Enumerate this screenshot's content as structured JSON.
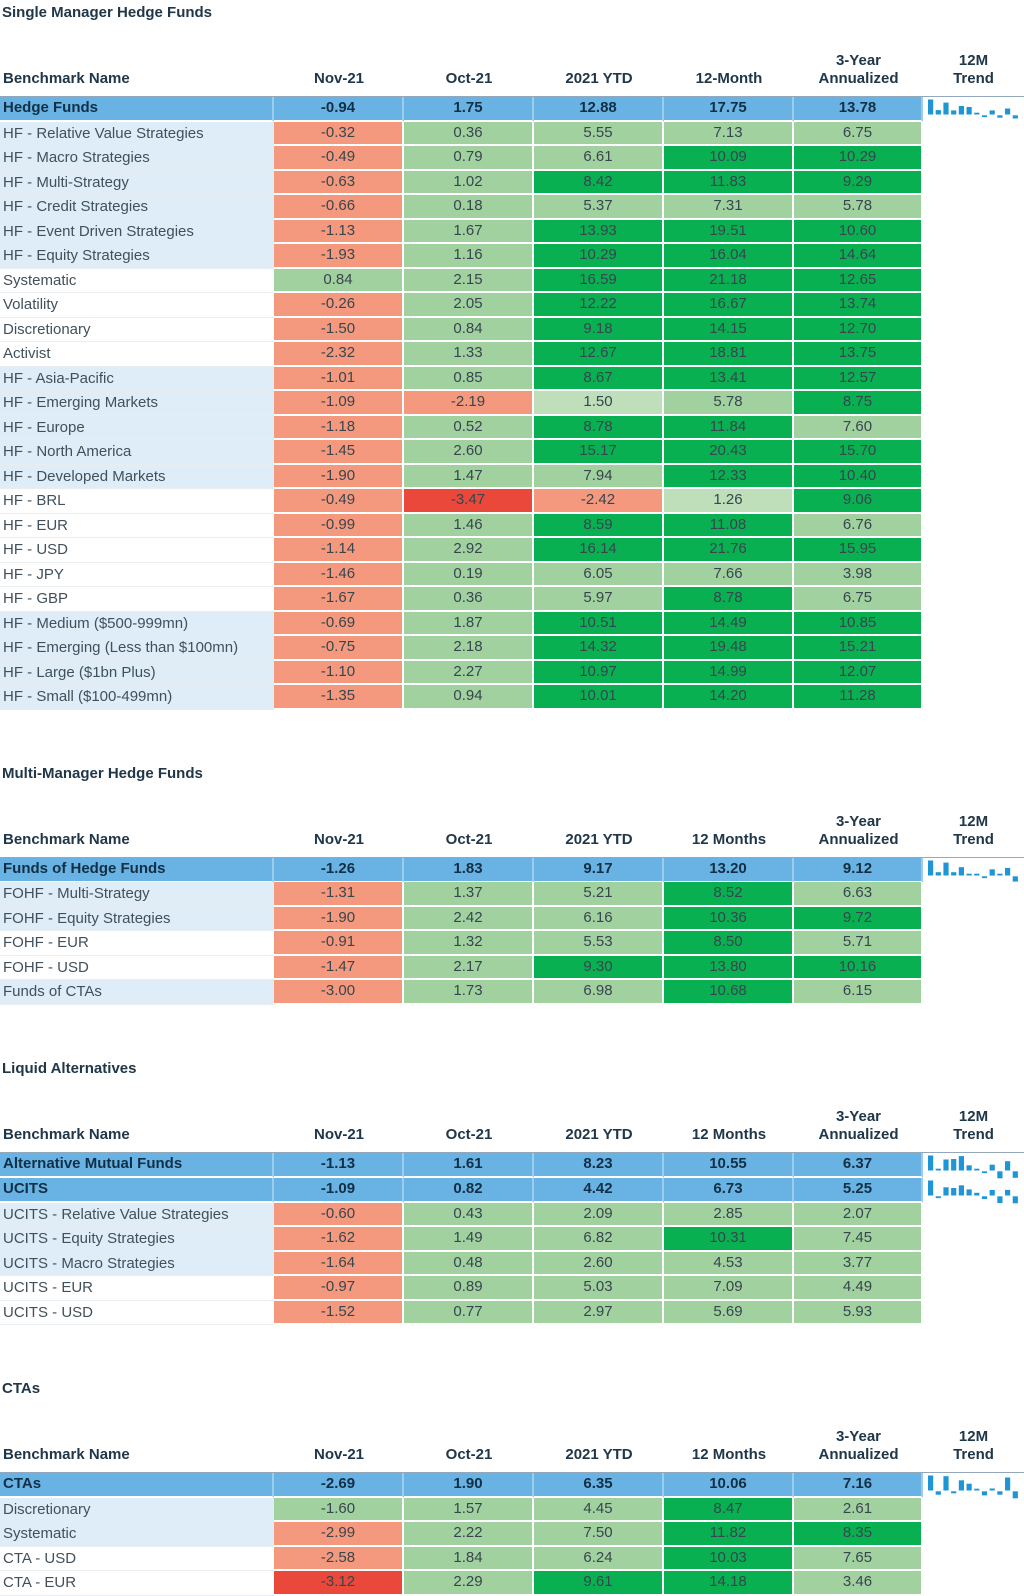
{
  "palette": {
    "parent_row_blue": "#68b3e3",
    "name_stripe_blue": "#deedf8",
    "cell_salmon": "#f5997e",
    "cell_red": "#e9483b",
    "cell_green_pale": "#bedfba",
    "cell_green_light": "#a2d1a0",
    "cell_green_dark": "#09b051",
    "sparkline_blue": "#1e96d6",
    "title_text": "#20374a",
    "number_text": "#37454e"
  },
  "chart_data": {
    "type": "table",
    "sections": [
      {
        "title": "Single Manager Hedge Funds",
        "columns": [
          "Benchmark Name",
          "Nov-21",
          "Oct-21",
          "2021 YTD",
          "12-Month",
          "3-Year\nAnnualized",
          "12M\nTrend"
        ],
        "parents": [
          {
            "name": "Hedge Funds",
            "values": [
              "-0.94",
              "1.75",
              "12.88",
              "17.75",
              "13.78"
            ],
            "trend": [
              4.4,
              1.3,
              3.5,
              1.2,
              2.5,
              2.2,
              0.5,
              -0.5,
              1.2,
              -0.7,
              1.75,
              -0.94
            ]
          }
        ],
        "rows": [
          {
            "name": "HF - Relative Value Strategies",
            "stripe": "blue",
            "values": [
              "-0.32",
              "0.36",
              "5.55",
              "7.13",
              "6.75"
            ],
            "colors": [
              "r1",
              "g1",
              "g1",
              "g1",
              "g1"
            ]
          },
          {
            "name": "HF - Macro Strategies",
            "stripe": "blue",
            "values": [
              "-0.49",
              "0.79",
              "6.61",
              "10.09",
              "10.29"
            ],
            "colors": [
              "r1",
              "g1",
              "g1",
              "g2",
              "g2"
            ]
          },
          {
            "name": "HF - Multi-Strategy",
            "stripe": "blue",
            "values": [
              "-0.63",
              "1.02",
              "8.42",
              "11.83",
              "9.29"
            ],
            "colors": [
              "r1",
              "g1",
              "g2",
              "g2",
              "g2"
            ]
          },
          {
            "name": "HF - Credit Strategies",
            "stripe": "blue",
            "values": [
              "-0.66",
              "0.18",
              "5.37",
              "7.31",
              "5.78"
            ],
            "colors": [
              "r1",
              "g1",
              "g1",
              "g1",
              "g1"
            ]
          },
          {
            "name": "HF - Event Driven Strategies",
            "stripe": "blue",
            "values": [
              "-1.13",
              "1.67",
              "13.93",
              "19.51",
              "10.60"
            ],
            "colors": [
              "r1",
              "g1",
              "g2",
              "g2",
              "g2"
            ]
          },
          {
            "name": "HF - Equity Strategies",
            "stripe": "blue",
            "values": [
              "-1.93",
              "1.16",
              "10.29",
              "16.04",
              "14.64"
            ],
            "colors": [
              "r1",
              "g1",
              "g2",
              "g2",
              "g2"
            ]
          },
          {
            "name": "Systematic",
            "stripe": "white",
            "values": [
              "0.84",
              "2.15",
              "16.59",
              "21.18",
              "12.65"
            ],
            "colors": [
              "g1",
              "g1",
              "g2",
              "g2",
              "g2"
            ]
          },
          {
            "name": "Volatility",
            "stripe": "white",
            "values": [
              "-0.26",
              "2.05",
              "12.22",
              "16.67",
              "13.74"
            ],
            "colors": [
              "r1",
              "g1",
              "g2",
              "g2",
              "g2"
            ]
          },
          {
            "name": "Discretionary",
            "stripe": "white",
            "values": [
              "-1.50",
              "0.84",
              "9.18",
              "14.15",
              "12.70"
            ],
            "colors": [
              "r1",
              "g1",
              "g2",
              "g2",
              "g2"
            ]
          },
          {
            "name": "Activist",
            "stripe": "white",
            "values": [
              "-2.32",
              "1.33",
              "12.67",
              "18.81",
              "13.75"
            ],
            "colors": [
              "r1",
              "g1",
              "g2",
              "g2",
              "g2"
            ]
          },
          {
            "name": "HF - Asia-Pacific",
            "stripe": "blue",
            "values": [
              "-1.01",
              "0.85",
              "8.67",
              "13.41",
              "12.57"
            ],
            "colors": [
              "r1",
              "g1",
              "g2",
              "g2",
              "g2"
            ]
          },
          {
            "name": "HF - Emerging Markets",
            "stripe": "blue",
            "values": [
              "-1.09",
              "-2.19",
              "1.50",
              "5.78",
              "8.75"
            ],
            "colors": [
              "r1",
              "r1",
              "g0",
              "g1",
              "g2"
            ]
          },
          {
            "name": "HF - Europe",
            "stripe": "blue",
            "values": [
              "-1.18",
              "0.52",
              "8.78",
              "11.84",
              "7.60"
            ],
            "colors": [
              "r1",
              "g1",
              "g2",
              "g2",
              "g1"
            ]
          },
          {
            "name": "HF - North America",
            "stripe": "blue",
            "values": [
              "-1.45",
              "2.60",
              "15.17",
              "20.43",
              "15.70"
            ],
            "colors": [
              "r1",
              "g1",
              "g2",
              "g2",
              "g2"
            ]
          },
          {
            "name": "HF - Developed Markets",
            "stripe": "blue",
            "values": [
              "-1.90",
              "1.47",
              "7.94",
              "12.33",
              "10.40"
            ],
            "colors": [
              "r1",
              "g1",
              "g1",
              "g2",
              "g2"
            ]
          },
          {
            "name": "HF - BRL",
            "stripe": "white",
            "values": [
              "-0.49",
              "-3.47",
              "-2.42",
              "1.26",
              "9.06"
            ],
            "colors": [
              "r1",
              "r2",
              "r1",
              "g0",
              "g2"
            ]
          },
          {
            "name": "HF - EUR",
            "stripe": "white",
            "values": [
              "-0.99",
              "1.46",
              "8.59",
              "11.08",
              "6.76"
            ],
            "colors": [
              "r1",
              "g1",
              "g2",
              "g2",
              "g1"
            ]
          },
          {
            "name": "HF - USD",
            "stripe": "white",
            "values": [
              "-1.14",
              "2.92",
              "16.14",
              "21.76",
              "15.95"
            ],
            "colors": [
              "r1",
              "g1",
              "g2",
              "g2",
              "g2"
            ]
          },
          {
            "name": "HF - JPY",
            "stripe": "white",
            "values": [
              "-1.46",
              "0.19",
              "6.05",
              "7.66",
              "3.98"
            ],
            "colors": [
              "r1",
              "g1",
              "g1",
              "g1",
              "g1"
            ]
          },
          {
            "name": "HF - GBP",
            "stripe": "white",
            "values": [
              "-1.67",
              "0.36",
              "5.97",
              "8.78",
              "6.75"
            ],
            "colors": [
              "r1",
              "g1",
              "g1",
              "g2",
              "g1"
            ]
          },
          {
            "name": "HF - Medium ($500-999mn)",
            "stripe": "blue",
            "values": [
              "-0.69",
              "1.87",
              "10.51",
              "14.49",
              "10.85"
            ],
            "colors": [
              "r1",
              "g1",
              "g2",
              "g2",
              "g2"
            ]
          },
          {
            "name": "HF - Emerging (Less than $100mn)",
            "stripe": "blue",
            "values": [
              "-0.75",
              "2.18",
              "14.32",
              "19.48",
              "15.21"
            ],
            "colors": [
              "r1",
              "g1",
              "g2",
              "g2",
              "g2"
            ]
          },
          {
            "name": "HF - Large ($1bn Plus)",
            "stripe": "blue",
            "values": [
              "-1.10",
              "2.27",
              "10.97",
              "14.99",
              "12.07"
            ],
            "colors": [
              "r1",
              "g1",
              "g2",
              "g2",
              "g2"
            ]
          },
          {
            "name": "HF - Small ($100-499mn)",
            "stripe": "blue",
            "values": [
              "-1.35",
              "0.94",
              "10.01",
              "14.20",
              "11.28"
            ],
            "colors": [
              "r1",
              "g1",
              "g2",
              "g2",
              "g2"
            ]
          }
        ]
      },
      {
        "title": "Multi-Manager Hedge Funds",
        "columns": [
          "Benchmark Name",
          "Nov-21",
          "Oct-21",
          "2021 YTD",
          "12 Months",
          "3-Year\nAnnualized",
          "12M\nTrend"
        ],
        "parents": [
          {
            "name": "Funds of Hedge Funds",
            "values": [
              "-1.26",
              "1.83",
              "9.17",
              "13.20",
              "9.12"
            ],
            "trend": [
              3.6,
              0.8,
              3.1,
              0.8,
              2.0,
              0.3,
              0.2,
              -0.3,
              1.5,
              0.2,
              1.83,
              -1.26
            ]
          }
        ],
        "rows": [
          {
            "name": "FOHF - Multi-Strategy",
            "stripe": "blue",
            "values": [
              "-1.31",
              "1.37",
              "5.21",
              "8.52",
              "6.63"
            ],
            "colors": [
              "r1",
              "g1",
              "g1",
              "g2",
              "g1"
            ]
          },
          {
            "name": "FOHF - Equity Strategies",
            "stripe": "blue",
            "values": [
              "-1.90",
              "2.42",
              "6.16",
              "10.36",
              "9.72"
            ],
            "colors": [
              "r1",
              "g1",
              "g1",
              "g2",
              "g2"
            ]
          },
          {
            "name": "FOHF - EUR",
            "stripe": "white",
            "values": [
              "-0.91",
              "1.32",
              "5.53",
              "8.50",
              "5.71"
            ],
            "colors": [
              "r1",
              "g1",
              "g1",
              "g2",
              "g1"
            ]
          },
          {
            "name": "FOHF - USD",
            "stripe": "white",
            "values": [
              "-1.47",
              "2.17",
              "9.30",
              "13.80",
              "10.16"
            ],
            "colors": [
              "r1",
              "g1",
              "g2",
              "g2",
              "g2"
            ]
          },
          {
            "name": "Funds of CTAs",
            "stripe": "blue",
            "values": [
              "-3.00",
              "1.73",
              "6.98",
              "10.68",
              "6.15"
            ],
            "colors": [
              "r1",
              "g1",
              "g1",
              "g2",
              "g1"
            ]
          }
        ]
      },
      {
        "title": "Liquid Alternatives",
        "columns": [
          "Benchmark Name",
          "Nov-21",
          "Oct-21",
          "2021 YTD",
          "12 Months",
          "3-Year\nAnnualized",
          "12M\nTrend"
        ],
        "parents": [
          {
            "name": "Alternative Mutual Funds",
            "values": [
              "-1.13",
              "1.61",
              "8.23",
              "10.55",
              "6.37"
            ],
            "trend": [
              2.6,
              0.2,
              1.9,
              2.0,
              2.5,
              0.9,
              0.3,
              -0.3,
              1.0,
              -1.5,
              1.61,
              -1.13
            ]
          },
          {
            "name": "UCITS",
            "values": [
              "-1.09",
              "0.82",
              "4.42",
              "6.73",
              "5.25"
            ],
            "trend": [
              2.2,
              -0.2,
              1.2,
              1.1,
              1.5,
              0.9,
              0.4,
              -0.4,
              0.8,
              -1.0,
              0.82,
              -1.09
            ]
          }
        ],
        "rows": [
          {
            "name": "UCITS - Relative Value Strategies",
            "stripe": "blue",
            "values": [
              "-0.60",
              "0.43",
              "2.09",
              "2.85",
              "2.07"
            ],
            "colors": [
              "r1",
              "g1",
              "g1",
              "g1",
              "g1"
            ]
          },
          {
            "name": "UCITS - Equity Strategies",
            "stripe": "blue",
            "values": [
              "-1.62",
              "1.49",
              "6.82",
              "10.31",
              "7.45"
            ],
            "colors": [
              "r1",
              "g1",
              "g1",
              "g2",
              "g1"
            ]
          },
          {
            "name": "UCITS - Macro Strategies",
            "stripe": "blue",
            "values": [
              "-1.64",
              "0.48",
              "2.60",
              "4.53",
              "3.77"
            ],
            "colors": [
              "r1",
              "g1",
              "g1",
              "g1",
              "g1"
            ]
          },
          {
            "name": "UCITS - EUR",
            "stripe": "white",
            "values": [
              "-0.97",
              "0.89",
              "5.03",
              "7.09",
              "4.49"
            ],
            "colors": [
              "r1",
              "g1",
              "g1",
              "g1",
              "g1"
            ]
          },
          {
            "name": "UCITS - USD",
            "stripe": "white",
            "values": [
              "-1.52",
              "0.77",
              "2.97",
              "5.69",
              "5.93"
            ],
            "colors": [
              "r1",
              "g1",
              "g1",
              "g1",
              "g1"
            ]
          }
        ]
      },
      {
        "title": "CTAs",
        "columns": [
          "Benchmark Name",
          "Nov-21",
          "Oct-21",
          "2021 YTD",
          "12 Months",
          "3-Year\nAnnualized",
          "12M\nTrend"
        ],
        "parents": [
          {
            "name": "CTAs",
            "values": [
              "-2.69",
              "1.90",
              "6.35",
              "10.06",
              "7.16"
            ],
            "trend": [
              2.2,
              -0.5,
              2.1,
              -0.3,
              1.5,
              1.0,
              0.2,
              -0.6,
              0.3,
              -0.5,
              1.9,
              -2.69
            ]
          }
        ],
        "rows": [
          {
            "name": "Discretionary",
            "stripe": "blue",
            "values": [
              "-1.60",
              "1.57",
              "4.45",
              "8.47",
              "2.61"
            ],
            "colors": [
              "g1",
              "g1",
              "g1",
              "g2",
              "g1"
            ]
          },
          {
            "name": "Systematic",
            "stripe": "blue",
            "values": [
              "-2.99",
              "2.22",
              "7.50",
              "11.82",
              "8.35"
            ],
            "colors": [
              "r1",
              "g1",
              "g1",
              "g2",
              "g2"
            ]
          },
          {
            "name": "CTA - USD",
            "stripe": "white",
            "values": [
              "-2.58",
              "1.84",
              "6.24",
              "10.03",
              "7.65"
            ],
            "colors": [
              "r1",
              "g1",
              "g1",
              "g2",
              "g1"
            ]
          },
          {
            "name": "CTA - EUR",
            "stripe": "white",
            "values": [
              "-3.12",
              "2.29",
              "9.61",
              "14.18",
              "3.46"
            ],
            "colors": [
              "r2",
              "g1",
              "g2",
              "g2",
              "g1"
            ]
          }
        ]
      }
    ]
  }
}
